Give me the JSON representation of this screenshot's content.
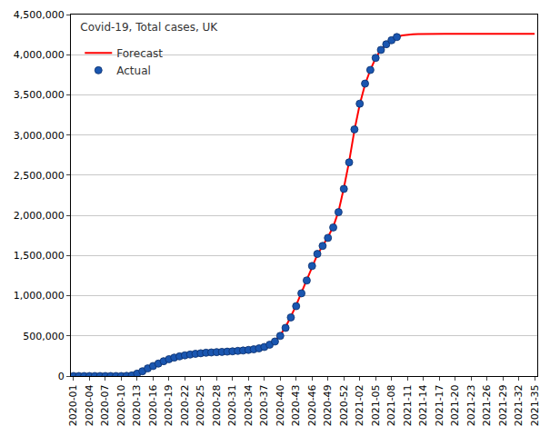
{
  "chart_data": {
    "type": "line",
    "title": "Covid-19, Total cases, UK",
    "categories": [
      "2020-01",
      null,
      null,
      "2020-04",
      null,
      null,
      "2020-07",
      null,
      null,
      "2020-10",
      null,
      null,
      "2020-13",
      null,
      null,
      "2020-16",
      null,
      null,
      "2020-19",
      null,
      null,
      "2020-22",
      null,
      null,
      "2020-25",
      null,
      null,
      "2020-28",
      null,
      null,
      "2020-31",
      null,
      null,
      "2020-34",
      null,
      null,
      "2020-37",
      null,
      null,
      "2020-40",
      null,
      null,
      "2020-43",
      null,
      null,
      "2020-46",
      null,
      null,
      "2020-49",
      null,
      null,
      "2020-52",
      null,
      null,
      "2021-02",
      null,
      null,
      "2021-05",
      null,
      null,
      "2021-08",
      null,
      null,
      "2021-11",
      null,
      null,
      "2021-14",
      null,
      null,
      "2021-17",
      null,
      null,
      "2021-20",
      null,
      null,
      "2021-23",
      null,
      null,
      "2021-26",
      null,
      null,
      "2021-29",
      null,
      null,
      "2021-32",
      null,
      null,
      "2021-35"
    ],
    "series": [
      {
        "name": "Forecast",
        "type": "line",
        "color": "#ff0000",
        "line_style": "solid",
        "values": [
          0,
          0,
          0,
          0,
          0,
          0,
          0,
          0,
          0,
          0,
          3000,
          10000,
          28000,
          58000,
          92000,
          123000,
          154000,
          184000,
          209000,
          229000,
          245000,
          258000,
          268000,
          277000,
          284000,
          290000,
          294000,
          298000,
          301000,
          304000,
          308000,
          313000,
          318000,
          325000,
          333000,
          345000,
          365000,
          395000,
          440000,
          510000,
          610000,
          740000,
          880000,
          1040000,
          1200000,
          1370000,
          1510000,
          1620000,
          1730000,
          1860000,
          2050000,
          2340000,
          2670000,
          3060000,
          3380000,
          3630000,
          3810000,
          3960000,
          4060000,
          4130000,
          4180000,
          4220000,
          4240000,
          4250000,
          4255000,
          4258000,
          4260000,
          4260000,
          4260000,
          4260000,
          4260000,
          4260000,
          4260000,
          4260000,
          4260000,
          4260000,
          4260000,
          4260000,
          4260000,
          4260000,
          4260000,
          4260000,
          4260000,
          4260000,
          4260000,
          4260000,
          4260000,
          4260000
        ]
      },
      {
        "name": "Actual",
        "type": "scatter",
        "color": "#1a56b0",
        "marker": "circle",
        "values": [
          0,
          0,
          0,
          0,
          0,
          0,
          0,
          0,
          0,
          0,
          2000,
          8000,
          30000,
          60000,
          95000,
          125000,
          155000,
          185000,
          210000,
          230000,
          245000,
          258000,
          268000,
          277000,
          284000,
          290000,
          294000,
          298000,
          301000,
          304000,
          308000,
          313000,
          318000,
          325000,
          333000,
          345000,
          362000,
          390000,
          430000,
          500000,
          600000,
          730000,
          870000,
          1030000,
          1190000,
          1370000,
          1520000,
          1620000,
          1720000,
          1850000,
          2040000,
          2330000,
          2660000,
          3070000,
          3390000,
          3640000,
          3810000,
          3960000,
          4060000,
          4130000,
          4180000,
          4220000,
          null,
          null,
          null,
          null,
          null,
          null,
          null,
          null,
          null,
          null,
          null,
          null,
          null,
          null,
          null,
          null,
          null,
          null,
          null,
          null,
          null,
          null,
          null,
          null,
          null,
          null
        ]
      }
    ],
    "ylim": [
      0,
      4500000
    ],
    "yticks": [
      0,
      {
        "value": 500000,
        "label": "500,000"
      },
      {
        "value": 1000000,
        "label": "1,000,000"
      },
      {
        "value": 1500000,
        "label": "1,500,000"
      },
      {
        "value": 2000000,
        "label": "2,000,000"
      },
      {
        "value": 2500000,
        "label": "2,500,000"
      },
      {
        "value": 3000000,
        "label": "3,000,000"
      },
      {
        "value": 3500000,
        "label": "3,500,000"
      },
      {
        "value": 4000000,
        "label": "4,000,000"
      },
      {
        "value": 4500000,
        "label": "4,500,000"
      }
    ],
    "grid": true,
    "legend": "upper left"
  }
}
